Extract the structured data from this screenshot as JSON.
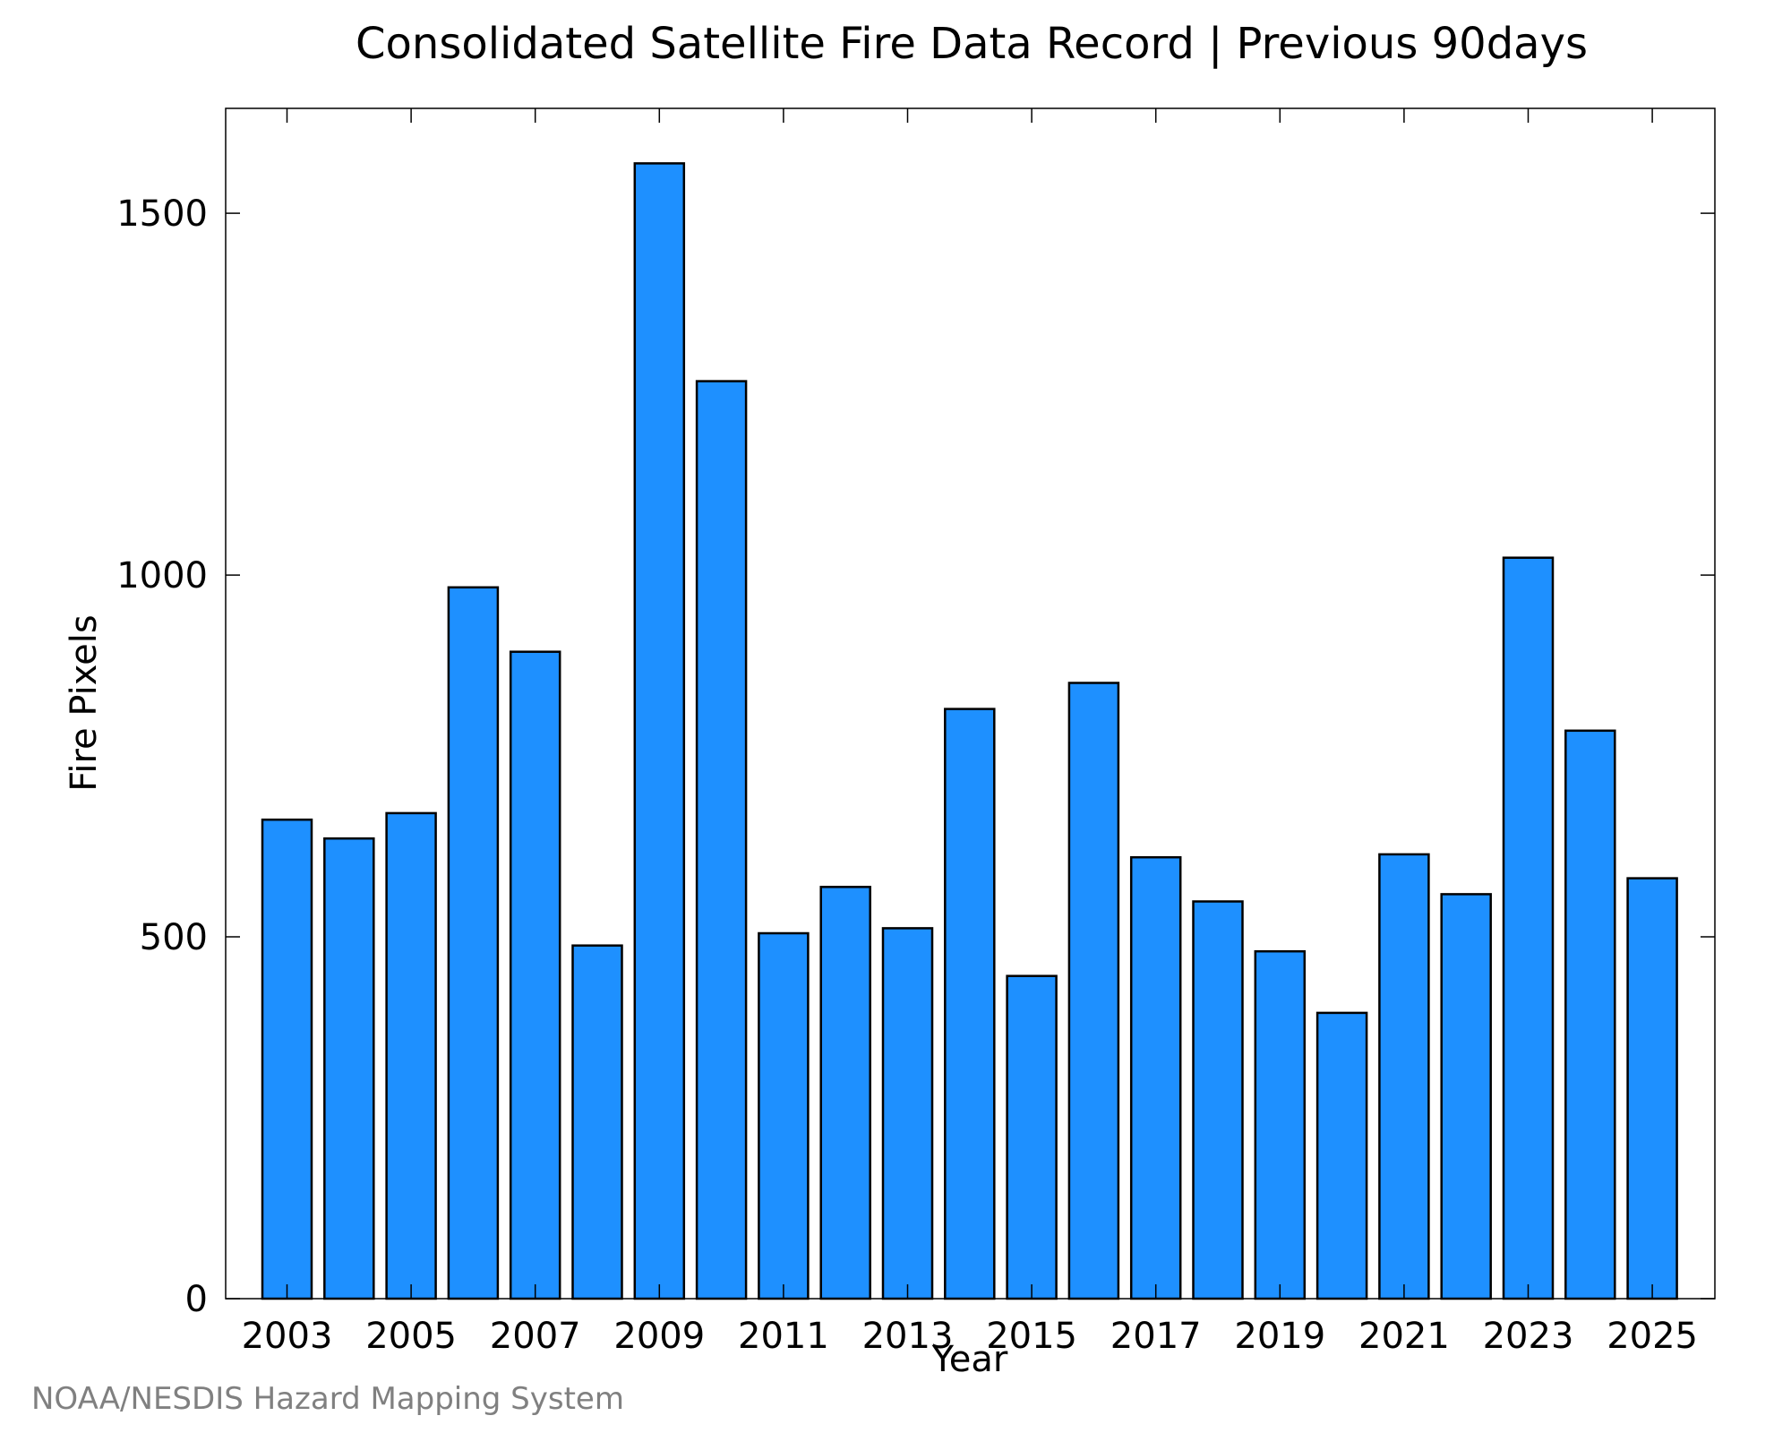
{
  "chart_data": {
    "type": "bar",
    "title": "Consolidated Satellite Fire Data Record | Previous 90days",
    "xlabel": "Year",
    "ylabel": "Fire Pixels",
    "categories": [
      "2003",
      "2004",
      "2005",
      "2006",
      "2007",
      "2008",
      "2009",
      "2010",
      "2011",
      "2012",
      "2013",
      "2014",
      "2015",
      "2016",
      "2017",
      "2018",
      "2019",
      "2020",
      "2021",
      "2022",
      "2023",
      "2024",
      "2025"
    ],
    "values": [
      662,
      636,
      671,
      983,
      894,
      488,
      1569,
      1268,
      505,
      569,
      512,
      815,
      446,
      851,
      610,
      549,
      480,
      395,
      614,
      559,
      1024,
      785,
      581
    ],
    "x_tick_labels": [
      "2003",
      "2005",
      "2007",
      "2009",
      "2011",
      "2013",
      "2015",
      "2017",
      "2019",
      "2021",
      "2023",
      "2025"
    ],
    "y_ticks": [
      0,
      500,
      1000,
      1500
    ],
    "ylim": [
      0,
      1645
    ],
    "bar_color": "#1e90ff",
    "bar_edge_color": "#000000",
    "grid": false,
    "legend": false
  },
  "credit": "NOAA/NESDIS Hazard Mapping System"
}
